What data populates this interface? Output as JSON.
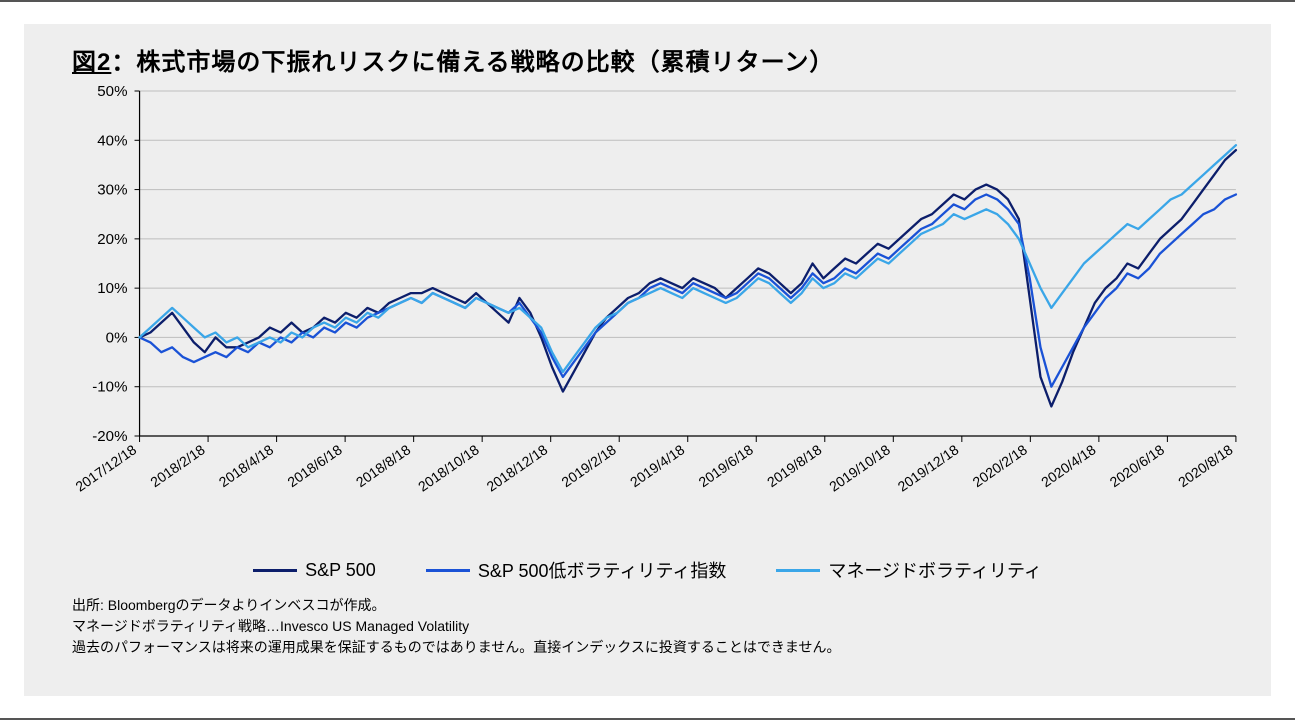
{
  "title_label": "図2",
  "title_sep": "：",
  "title_text": "株式市場の下振れリスクに備える戦略の比較（累積リターン）",
  "chart": {
    "type": "line",
    "background_color": "#eeeeee",
    "axis_color": "#000000",
    "grid_color": "#bdbdbd",
    "line_width": 2.3,
    "ylim": [
      -20,
      50
    ],
    "yticks": [
      -20,
      -10,
      0,
      10,
      20,
      30,
      40,
      50
    ],
    "ytick_labels": [
      "-20%",
      "-10%",
      "0%",
      "10%",
      "20%",
      "30%",
      "40%",
      "50%"
    ],
    "xtick_labels": [
      "2017/12/18",
      "2018/2/18",
      "2018/4/18",
      "2018/6/18",
      "2018/8/18",
      "2018/10/18",
      "2018/12/18",
      "2019/2/18",
      "2019/4/18",
      "2019/6/18",
      "2019/8/18",
      "2019/10/18",
      "2019/12/18",
      "2020/2/18",
      "2020/4/18",
      "2020/6/18",
      "2020/8/18"
    ],
    "xtick_rotation": -35,
    "series": [
      {
        "name": "S&P 500",
        "color": "#0c1e6b",
        "values": [
          0,
          1,
          3,
          5,
          2,
          -1,
          -3,
          0,
          -2,
          -2,
          -1,
          0,
          2,
          1,
          3,
          1,
          2,
          4,
          3,
          5,
          4,
          6,
          5,
          7,
          8,
          9,
          9,
          10,
          9,
          8,
          7,
          9,
          7,
          5,
          3,
          8,
          5,
          0,
          -6,
          -11,
          -7,
          -3,
          1,
          4,
          6,
          8,
          9,
          11,
          12,
          11,
          10,
          12,
          11,
          10,
          8,
          10,
          12,
          14,
          13,
          11,
          9,
          11,
          15,
          12,
          14,
          16,
          15,
          17,
          19,
          18,
          20,
          22,
          24,
          25,
          27,
          29,
          28,
          30,
          31,
          30,
          28,
          24,
          8,
          -8,
          -14,
          -9,
          -3,
          2,
          7,
          10,
          12,
          15,
          14,
          17,
          20,
          22,
          24,
          27,
          30,
          33,
          36,
          38
        ]
      },
      {
        "name": "S&P 500低ボラティリティ指数",
        "color": "#1a52d6",
        "values": [
          0,
          -1,
          -3,
          -2,
          -4,
          -5,
          -4,
          -3,
          -4,
          -2,
          -3,
          -1,
          -2,
          0,
          -1,
          1,
          0,
          2,
          1,
          3,
          2,
          4,
          5,
          6,
          7,
          8,
          7,
          9,
          8,
          7,
          6,
          8,
          7,
          6,
          5,
          7,
          4,
          1,
          -4,
          -8,
          -5,
          -2,
          1,
          3,
          5,
          7,
          8,
          10,
          11,
          10,
          9,
          11,
          10,
          9,
          8,
          9,
          11,
          13,
          12,
          10,
          8,
          10,
          13,
          11,
          12,
          14,
          13,
          15,
          17,
          16,
          18,
          20,
          22,
          23,
          25,
          27,
          26,
          28,
          29,
          28,
          26,
          23,
          12,
          -2,
          -10,
          -6,
          -2,
          2,
          5,
          8,
          10,
          13,
          12,
          14,
          17,
          19,
          21,
          23,
          25,
          26,
          28,
          29
        ]
      },
      {
        "name": "マネージドボラティリティ",
        "color": "#3aa6e8",
        "values": [
          0,
          2,
          4,
          6,
          4,
          2,
          0,
          1,
          -1,
          0,
          -2,
          -1,
          0,
          -1,
          1,
          0,
          2,
          3,
          2,
          4,
          3,
          5,
          4,
          6,
          7,
          8,
          7,
          9,
          8,
          7,
          6,
          8,
          7,
          6,
          5,
          6,
          4,
          2,
          -3,
          -7,
          -4,
          -1,
          2,
          4,
          5,
          7,
          8,
          9,
          10,
          9,
          8,
          10,
          9,
          8,
          7,
          8,
          10,
          12,
          11,
          9,
          7,
          9,
          12,
          10,
          11,
          13,
          12,
          14,
          16,
          15,
          17,
          19,
          21,
          22,
          23,
          25,
          24,
          25,
          26,
          25,
          23,
          20,
          15,
          10,
          6,
          9,
          12,
          15,
          17,
          19,
          21,
          23,
          22,
          24,
          26,
          28,
          29,
          31,
          33,
          35,
          37,
          39
        ]
      }
    ]
  },
  "legend_items": [
    {
      "label": "S&P 500",
      "color": "#0c1e6b"
    },
    {
      "label": "S&P 500低ボラティリティ指数",
      "color": "#1a52d6"
    },
    {
      "label": "マネージドボラティリティ",
      "color": "#3aa6e8"
    }
  ],
  "footnotes": [
    "出所: Bloombergのデータよりインベスコが作成。",
    "マネージドボラティリティ戦略…Invesco US Managed Volatility",
    "過去のパフォーマンスは将来の運用成果を保証するものではありません。直接インデックスに投資することはできません。"
  ]
}
